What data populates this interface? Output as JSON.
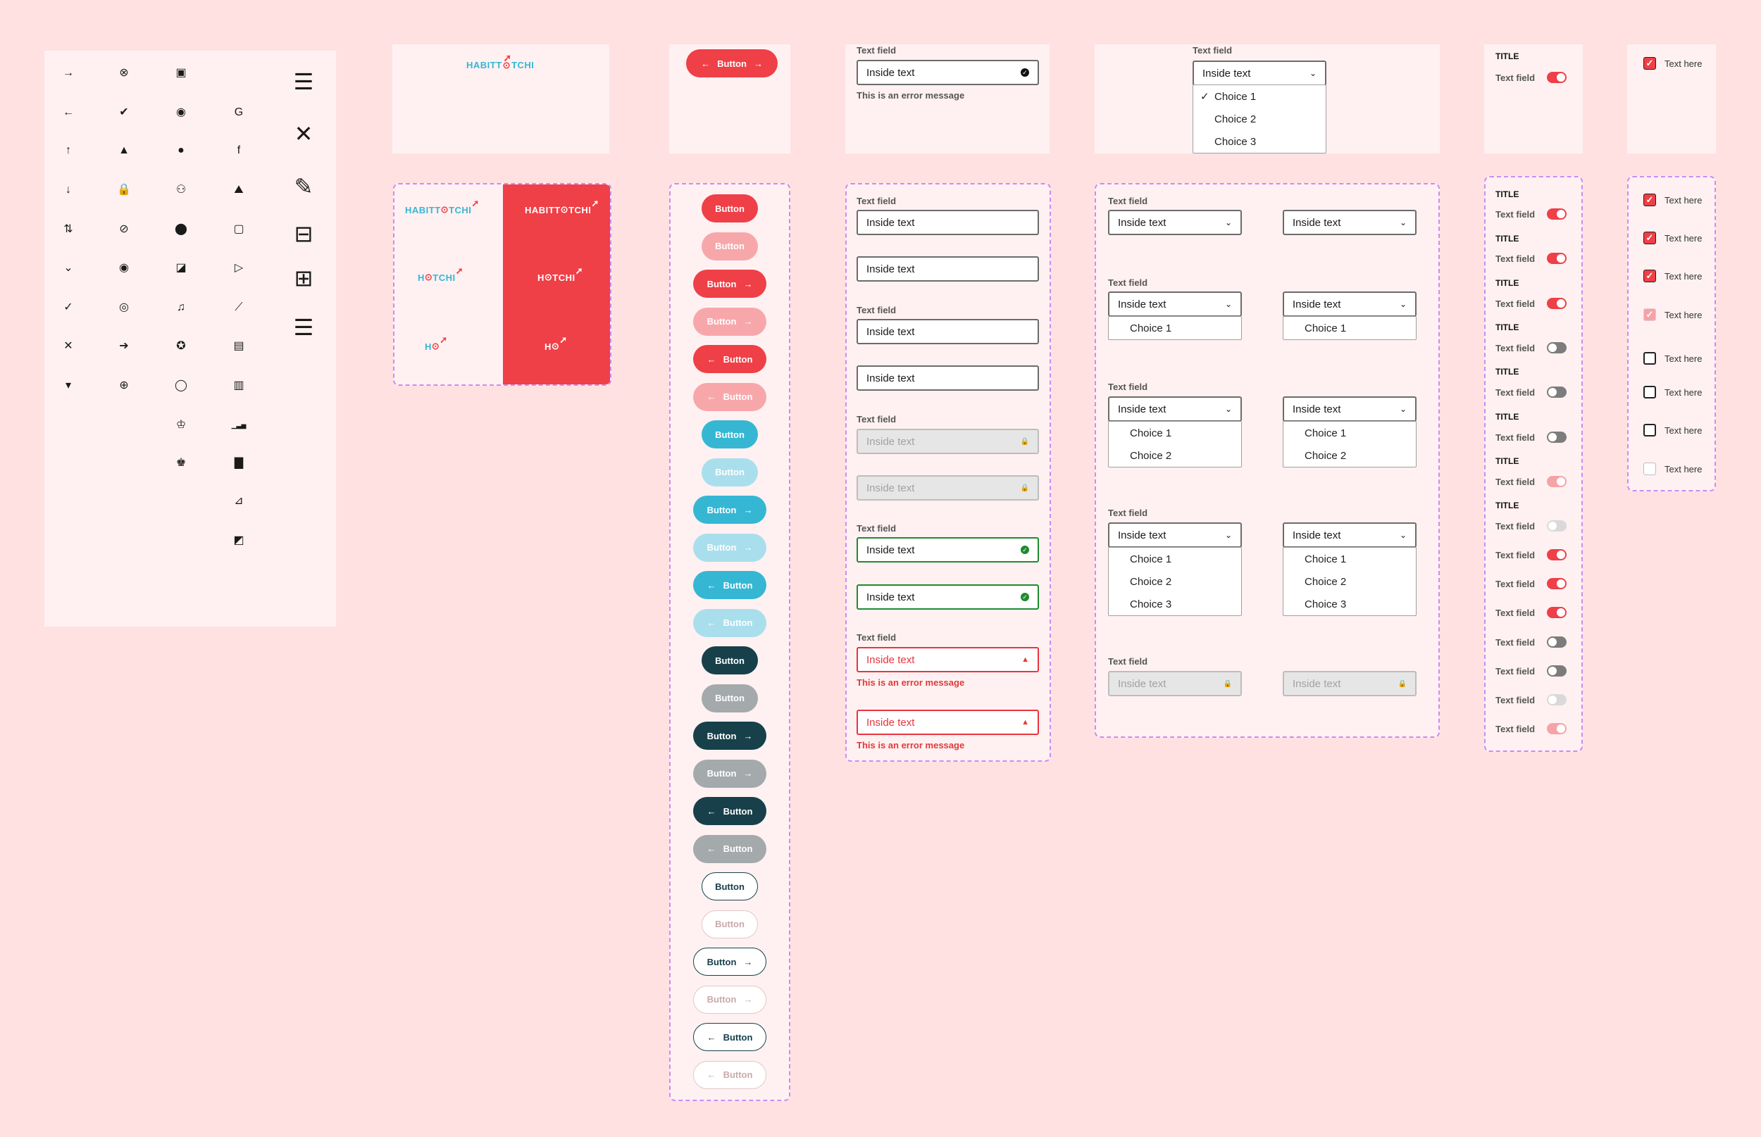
{
  "colors": {
    "background": "#ffe1e1",
    "card": "#fff1f1",
    "primary_red": "#ef3f47",
    "light_red": "#f7a7aa",
    "cyan": "#35b7d4",
    "light_cyan": "#a9dfec",
    "dark_teal": "#17404a",
    "gray": "#a4a9ab",
    "success": "#1f8a2f",
    "error": "#e03a3a",
    "dashed_border": "#c98cf7"
  },
  "logo": {
    "part1": "HABITT",
    "part2": "TCHI",
    "short1": "H",
    "short2": "TCHI",
    "mini": "H"
  },
  "button": {
    "label": "Button"
  },
  "text_field": {
    "label": "Text field",
    "value": "Inside text",
    "error": "This is an error message"
  },
  "dropdown": {
    "label": "Text field",
    "value": "Inside text",
    "choices": [
      "Choice 1",
      "Choice 2",
      "Choice 3"
    ]
  },
  "switch": {
    "title": "TITLE",
    "label": "Text field"
  },
  "checkbox": {
    "label": "Text here"
  },
  "icons": [
    "arrow-right",
    "close-circle",
    "contact-card",
    "apple",
    "hamburger",
    "arrow-left",
    "check-circle",
    "user-circle",
    "google",
    "close-x",
    "arrow-up",
    "warning",
    "user",
    "facebook",
    "brush",
    "arrow-down",
    "lock",
    "users",
    "landscape",
    "mailbox",
    "arrows-vertical",
    "eye-off",
    "location-pin",
    "tablet",
    "puzzle",
    "chevron-down",
    "eye",
    "image-edit",
    "play-circle",
    "check",
    "eye-small",
    "bell",
    "chart-line",
    "close",
    "arrow-circle-right",
    "award",
    "chart-box",
    "caret-down",
    "plus-circle",
    "lightbulb",
    "chart-square",
    "trophy",
    "bar-chart",
    "trophy-filled",
    "bar-chart-filled",
    "trend-box",
    "trend-box-filled"
  ]
}
